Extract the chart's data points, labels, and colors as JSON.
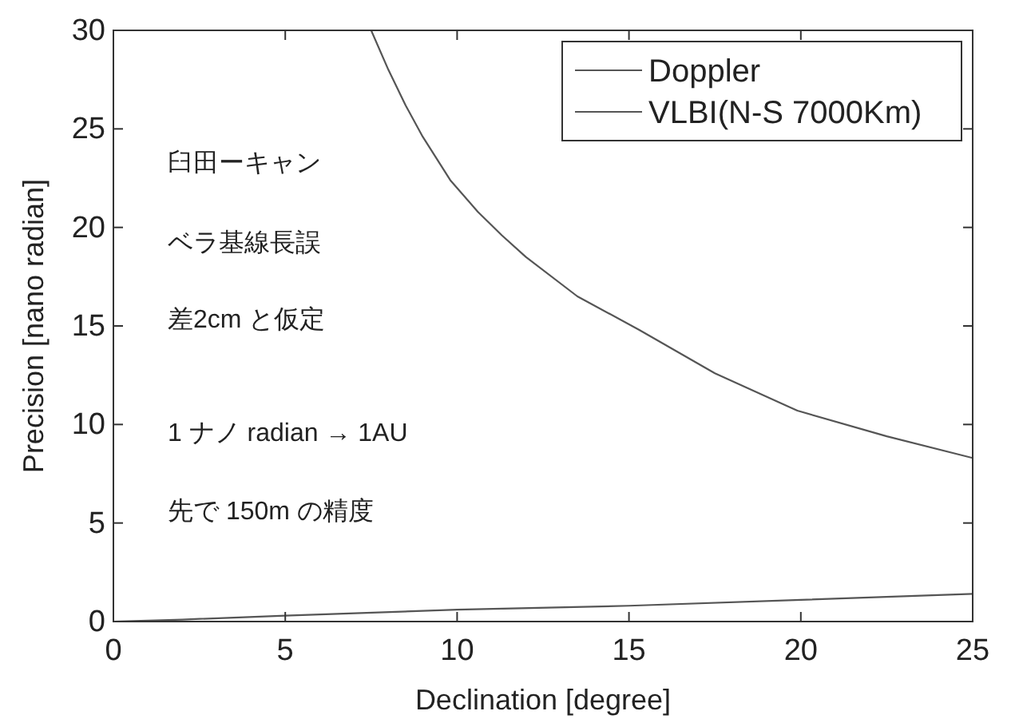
{
  "chart_data": {
    "type": "line",
    "xlabel": "Declination [degree]",
    "ylabel": "Precision [nano radian]",
    "xlim": [
      0,
      25
    ],
    "ylim": [
      0,
      30
    ],
    "xticks": [
      0,
      5,
      10,
      15,
      20,
      25
    ],
    "yticks": [
      0,
      5,
      10,
      15,
      20,
      25,
      30
    ],
    "grid": false,
    "legend": "top right",
    "line_style": "solid",
    "series": [
      {
        "name": "Doppler",
        "color": "#555555",
        "x": [
          0,
          2,
          5,
          10,
          15,
          20,
          25
        ],
        "values": [
          0,
          0.1,
          0.3,
          0.6,
          0.8,
          1.1,
          1.4
        ]
      },
      {
        "name": "VLBI(N-S 7000Km)",
        "color": "#555555",
        "x": [
          7.5,
          8,
          8.5,
          9,
          9.8,
          10.6,
          11.3,
          12,
          13.5,
          15.3,
          17.5,
          19.9,
          22.5,
          25
        ],
        "values": [
          30,
          28,
          26.2,
          24.6,
          22.4,
          20.8,
          19.6,
          18.5,
          16.5,
          14.8,
          12.6,
          10.7,
          9.4,
          8.3
        ]
      }
    ],
    "annotations": [
      "臼田ーキャン",
      "ベラ基線長誤",
      "差2cm と仮定",
      "1 ナノ radian → 1AU",
      "先で 150m の精度"
    ]
  }
}
